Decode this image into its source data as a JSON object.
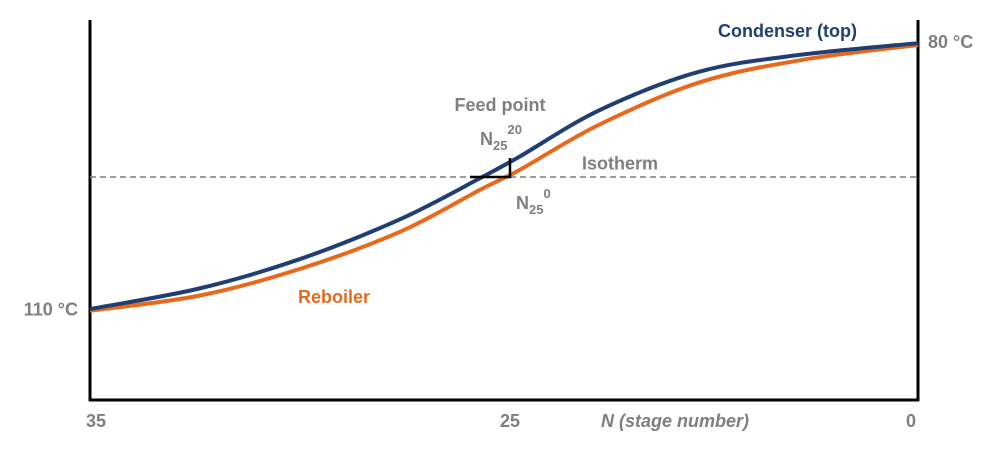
{
  "chart_data": {
    "type": "line",
    "xlabel": "N (stage number)",
    "xlim": [
      35,
      0
    ],
    "xticks": [
      35,
      25,
      0
    ],
    "ylim": [
      120,
      77.4
    ],
    "yticks": [
      {
        "value": 110,
        "label": "110 °C"
      }
    ],
    "y2lim": [
      120,
      77.4
    ],
    "y2ticks": [
      {
        "value": 80,
        "label": "80 °C"
      }
    ],
    "x": [
      35,
      32.4,
      30,
      27.6,
      25.7,
      24.4,
      19.5,
      13.4,
      7.2,
      0
    ],
    "series": [
      {
        "name": "Condenser (top)",
        "color": "#1f3f73",
        "values": [
          109.8,
          107.5,
          104.2,
          99.7,
          95.1,
          92.7,
          87.5,
          83.2,
          81.3,
          80.0
        ]
      },
      {
        "name": "Reboiler",
        "color": "#e8691c",
        "values": [
          110.0,
          108.3,
          105.3,
          101.1,
          96.4,
          94.2,
          89.1,
          84.4,
          81.9,
          80.2
        ]
      }
    ],
    "isotherm": {
      "label": "Isotherm",
      "value": 95,
      "color": "#7f7f7f"
    },
    "feed_point": {
      "label": "Feed point",
      "x": 25
    },
    "stage_top": {
      "base": "N",
      "sub": "25",
      "sup": "20"
    },
    "stage_bottom": {
      "base": "N",
      "sub": "25",
      "sup": "0"
    }
  }
}
